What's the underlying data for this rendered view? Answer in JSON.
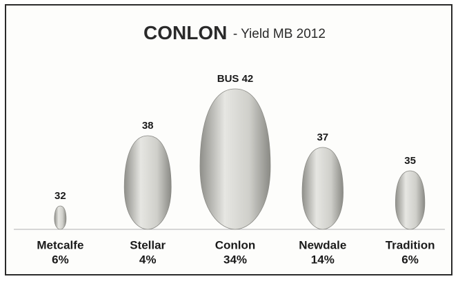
{
  "chart_data": {
    "type": "pictogram",
    "title": "CONLON",
    "subtitle": "- Yield MB 2012",
    "categories": [
      "Metcalfe",
      "Stellar",
      "Conlon",
      "Newdale",
      "Tradition"
    ],
    "values": [
      32,
      38,
      42,
      37,
      35
    ],
    "value_labels": [
      "32",
      "38",
      "BUS 42",
      "37",
      "35"
    ],
    "shares": [
      6,
      4,
      34,
      14,
      6
    ],
    "share_labels": [
      "6%",
      "4%",
      "34%",
      "14%",
      "6%"
    ],
    "ylim": [
      30,
      44
    ],
    "color": "#bdbdb8"
  }
}
